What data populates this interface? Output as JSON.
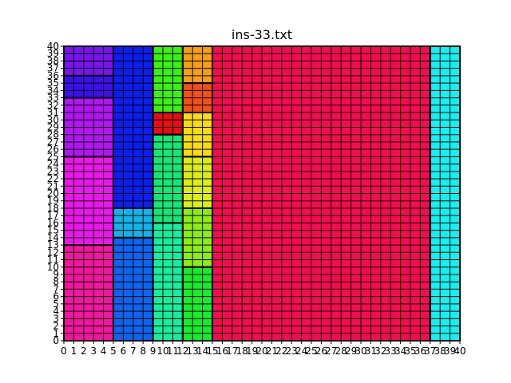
{
  "chart_data": {
    "type": "heatmap",
    "title": "ins-33.txt",
    "xlabel": "",
    "ylabel": "",
    "xlim": [
      0,
      40
    ],
    "ylim": [
      0,
      40
    ],
    "grid": true,
    "xticks": [
      "0",
      "1",
      "2",
      "3",
      "4",
      "5",
      "6",
      "7",
      "8",
      "9",
      "10",
      "11",
      "12",
      "13",
      "14",
      "15",
      "16",
      "17",
      "18",
      "19",
      "20",
      "21",
      "22",
      "23",
      "24",
      "25",
      "26",
      "27",
      "28",
      "29",
      "30",
      "31",
      "32",
      "33",
      "34",
      "35",
      "36",
      "37",
      "38",
      "39",
      "40"
    ],
    "yticks": [
      "0",
      "1",
      "2",
      "3",
      "4",
      "5",
      "6",
      "7",
      "8",
      "9",
      "10",
      "11",
      "12",
      "13",
      "14",
      "15",
      "16",
      "17",
      "18",
      "19",
      "20",
      "21",
      "22",
      "23",
      "24",
      "25",
      "26",
      "27",
      "28",
      "29",
      "30",
      "31",
      "32",
      "33",
      "34",
      "35",
      "36",
      "37",
      "38",
      "39",
      "40"
    ],
    "rects": [
      {
        "x": 0,
        "y": 0,
        "w": 5,
        "h": 13,
        "color": "#f5149e"
      },
      {
        "x": 0,
        "y": 13,
        "w": 5,
        "h": 12,
        "color": "#ee14ee"
      },
      {
        "x": 0,
        "y": 25,
        "w": 5,
        "h": 8,
        "color": "#b414f5"
      },
      {
        "x": 0,
        "y": 33,
        "w": 5,
        "h": 3,
        "color": "#3c0ff0"
      },
      {
        "x": 0,
        "y": 36,
        "w": 5,
        "h": 4,
        "color": "#7814f0"
      },
      {
        "x": 5,
        "y": 0,
        "w": 4,
        "h": 14,
        "color": "#0c64f0"
      },
      {
        "x": 5,
        "y": 14,
        "w": 4,
        "h": 4,
        "color": "#10b4e8"
      },
      {
        "x": 5,
        "y": 18,
        "w": 4,
        "h": 22,
        "color": "#0c1ef0"
      },
      {
        "x": 9,
        "y": 0,
        "w": 3,
        "h": 16,
        "color": "#14eea0"
      },
      {
        "x": 9,
        "y": 16,
        "w": 3,
        "h": 12,
        "color": "#14e678"
      },
      {
        "x": 9,
        "y": 28,
        "w": 3,
        "h": 3,
        "color": "#e80c14"
      },
      {
        "x": 9,
        "y": 31,
        "w": 3,
        "h": 9,
        "color": "#3cf014"
      },
      {
        "x": 12,
        "y": 0,
        "w": 3,
        "h": 10,
        "color": "#14ee28"
      },
      {
        "x": 12,
        "y": 10,
        "w": 3,
        "h": 8,
        "color": "#8cee0c"
      },
      {
        "x": 12,
        "y": 18,
        "w": 3,
        "h": 7,
        "color": "#dcee0c"
      },
      {
        "x": 12,
        "y": 25,
        "w": 3,
        "h": 6,
        "color": "#fadc0a"
      },
      {
        "x": 12,
        "y": 31,
        "w": 3,
        "h": 4,
        "color": "#f55014"
      },
      {
        "x": 12,
        "y": 35,
        "w": 3,
        "h": 5,
        "color": "#f5a00c"
      },
      {
        "x": 15,
        "y": 0,
        "w": 22,
        "h": 40,
        "color": "#f50c50"
      },
      {
        "x": 37,
        "y": 0,
        "w": 3,
        "h": 40,
        "color": "#14f0f0"
      }
    ]
  }
}
